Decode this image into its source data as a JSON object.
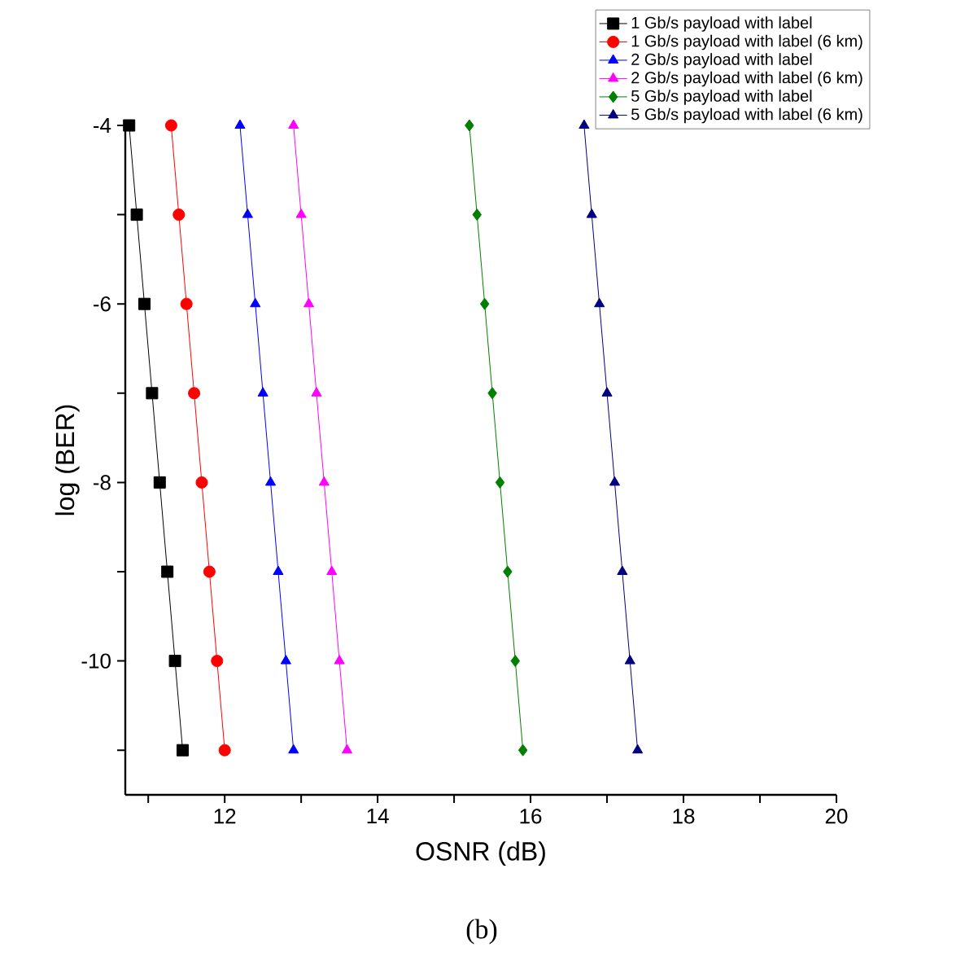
{
  "chart_data": {
    "type": "line",
    "xlabel": "OSNR (dB)",
    "ylabel": "log (BER)",
    "annotations": [
      "(b)"
    ],
    "series": [
      {
        "name": "1 Gb/s payload with label",
        "color": "#000000",
        "marker": "square",
        "x": [
          10.75,
          10.85,
          10.95,
          11.05,
          11.15,
          11.25,
          11.35,
          11.45
        ],
        "values": [
          -4,
          -5,
          -6,
          -7,
          -8,
          -9,
          -10,
          -11
        ]
      },
      {
        "name": "1 Gb/s payload with label (6 km)",
        "color": "#ff0000",
        "marker": "circle",
        "x": [
          11.3,
          11.4,
          11.5,
          11.6,
          11.7,
          11.8,
          11.9,
          12.0
        ],
        "values": [
          -4,
          -5,
          -6,
          -7,
          -8,
          -9,
          -10,
          -11
        ]
      },
      {
        "name": "2 Gb/s payload with label",
        "color": "#0000ff",
        "marker": "triangle",
        "x": [
          12.2,
          12.3,
          12.4,
          12.5,
          12.6,
          12.7,
          12.8,
          12.9
        ],
        "values": [
          -4,
          -5,
          -6,
          -7,
          -8,
          -9,
          -10,
          -11
        ]
      },
      {
        "name": "2 Gb/s payload with label (6 km)",
        "color": "#ff00ff",
        "marker": "triangle",
        "x": [
          12.9,
          13.0,
          13.1,
          13.2,
          13.3,
          13.4,
          13.5,
          13.6
        ],
        "values": [
          -4,
          -5,
          -6,
          -7,
          -8,
          -9,
          -10,
          -11
        ]
      },
      {
        "name": "5 Gb/s payload with label",
        "color": "#008000",
        "marker": "diamond",
        "x": [
          15.2,
          15.3,
          15.4,
          15.5,
          15.6,
          15.7,
          15.8,
          15.9
        ],
        "values": [
          -4,
          -5,
          -6,
          -7,
          -8,
          -9,
          -10,
          -11
        ]
      },
      {
        "name": "5 Gb/s payload with label (6 km)",
        "color": "#000080",
        "marker": "triangle",
        "x": [
          16.7,
          16.8,
          16.9,
          17.0,
          17.1,
          17.2,
          17.3,
          17.4
        ],
        "values": [
          -4,
          -5,
          -6,
          -7,
          -8,
          -9,
          -10,
          -11
        ]
      }
    ],
    "xlim": [
      10.7,
      20
    ],
    "ylim": [
      -11.5,
      -4
    ],
    "xticks": [
      {
        "value": 11,
        "label": null
      },
      12,
      {
        "value": 13,
        "label": null
      },
      14,
      {
        "value": 15,
        "label": null
      },
      16,
      {
        "value": 17,
        "label": null
      },
      18,
      {
        "value": 19,
        "label": null
      },
      20
    ],
    "yticks": [
      -4,
      {
        "value": -5,
        "label": null
      },
      -6,
      {
        "value": -7,
        "label": null
      },
      -8,
      {
        "value": -9,
        "label": null
      },
      -10,
      {
        "value": -11,
        "label": null
      }
    ],
    "grid": false,
    "legend": "top right",
    "line_style": "solid"
  }
}
